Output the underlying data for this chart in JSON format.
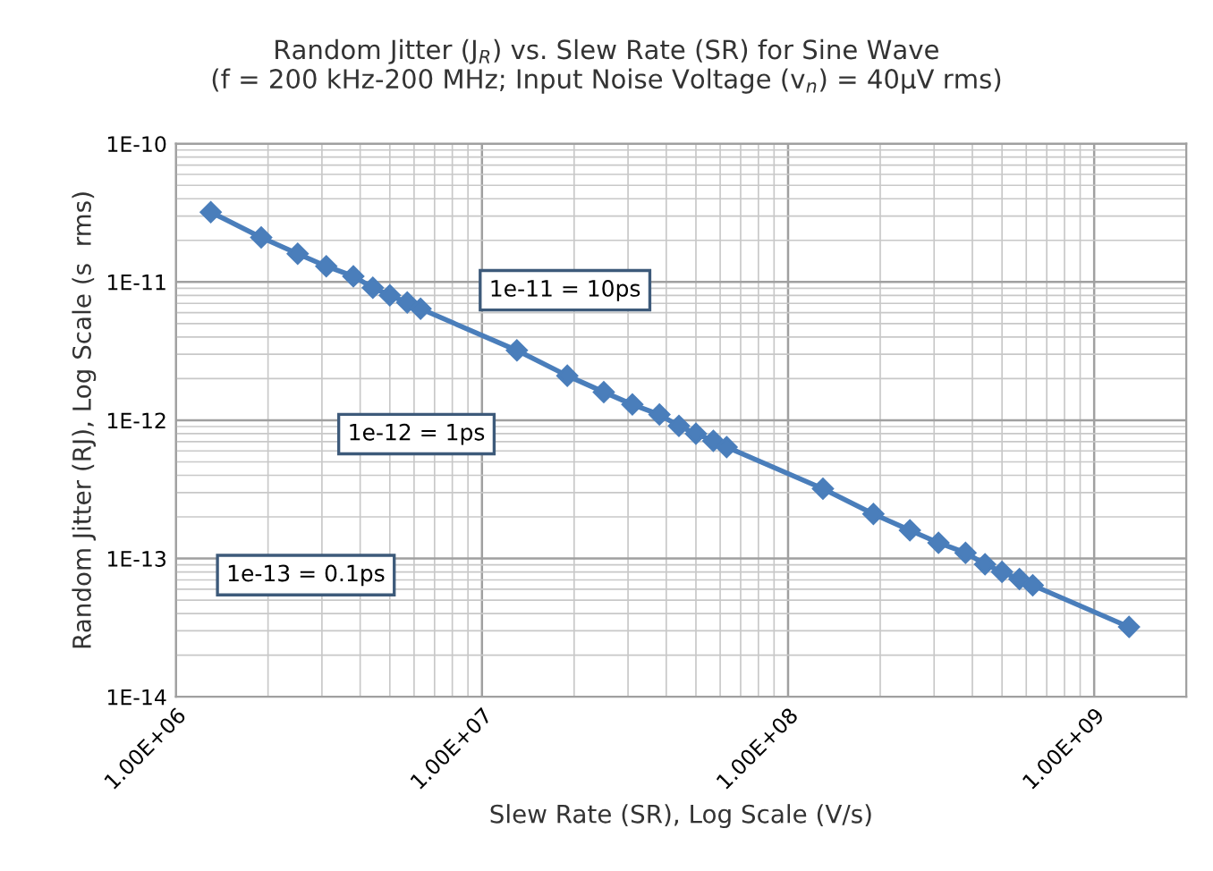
{
  "chart_data": {
    "type": "line",
    "title": "Random Jitter (J$_{R}$) vs. Slew Rate (SR) for Sine Wave\n(f = 200 kHz-200 MHz; Input Noise Voltage (v$_{n}$) = 40µV rms)",
    "xlabel": "Slew Rate (SR), Log Scale (V/s)",
    "ylabel": "Random Jitter (RJ), Log Scale (s  rms)",
    "x": [
      1300000.0,
      1900000.0,
      2500000.0,
      3100000.0,
      3800000.0,
      4400000.0,
      5000000.0,
      5700000.0,
      6300000.0,
      13000000.0,
      19000000.0,
      25000000.0,
      31000000.0,
      38000000.0,
      44000000.0,
      50000000.0,
      57000000.0,
      63000000.0,
      130000000.0,
      190000000.0,
      250000000.0,
      310000000.0,
      380000000.0,
      440000000.0,
      500000000.0,
      570000000.0,
      630000000.0,
      1300000000.0
    ],
    "series": [
      {
        "color": "#4a7ebb",
        "values": [
          3.2e-11,
          2.1e-11,
          1.6e-11,
          1.3e-11,
          1.1e-11,
          9.1e-12,
          8e-12,
          7.1e-12,
          6.4e-12,
          3.2e-12,
          2.1e-12,
          1.6e-12,
          1.3e-12,
          1.1e-12,
          9.1e-13,
          8e-13,
          7.1e-13,
          6.4e-13,
          3.2e-13,
          2.1e-13,
          1.6e-13,
          1.3e-13,
          1.1e-13,
          9.1e-14,
          8e-14,
          7.1e-14,
          6.4e-14,
          3.2e-14
        ]
      }
    ],
    "annotations": [
      "1e-11 = 10ps",
      "1e-12 = 1ps",
      "1e-13 = 0.1ps"
    ],
    "log": "xy",
    "xlim": [
      1000000.0,
      2000000000.0
    ],
    "ylim": [
      1e-14,
      1e-10
    ],
    "xticks": [
      {
        "value": 1000000.0,
        "label": "1.00E+06"
      },
      {
        "value": 10000000.0,
        "label": "1.00E+07"
      },
      {
        "value": 100000000.0,
        "label": "1.00E+08"
      },
      {
        "value": 1000000000.0,
        "label": "1.00E+09"
      }
    ],
    "yticks": [
      {
        "value": 1e-14,
        "label": "1E-14"
      },
      {
        "value": 1e-13,
        "label": "1E-13"
      },
      {
        "value": 1e-12,
        "label": "1E-12"
      },
      {
        "value": 1e-11,
        "label": "1E-11"
      },
      {
        "value": 1e-10,
        "label": "1E-10"
      }
    ],
    "grid": true,
    "marker": "diamond",
    "line_style": "solid"
  }
}
